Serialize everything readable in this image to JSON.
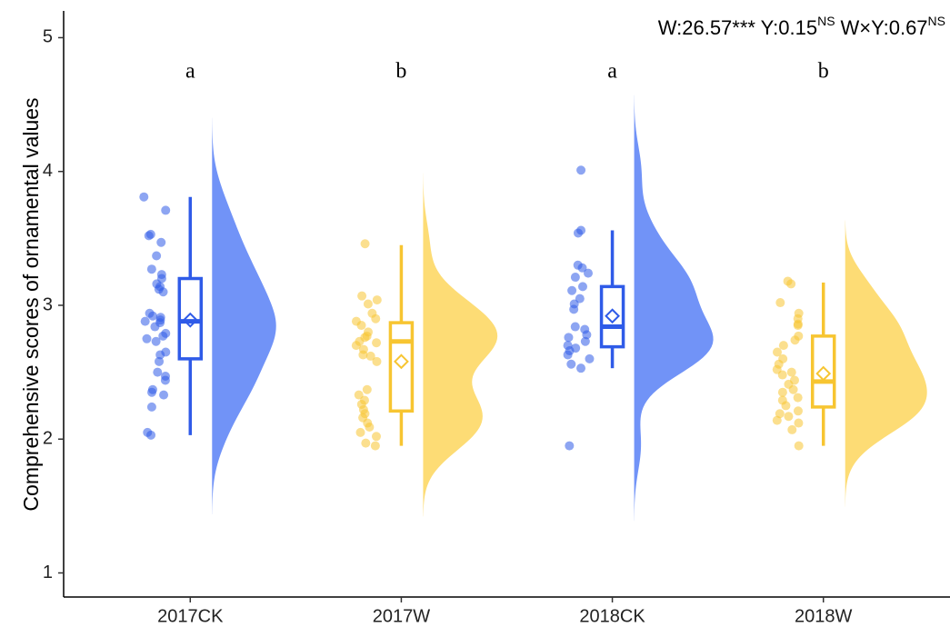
{
  "chart_data": {
    "type": "raincloud",
    "y_label": "Comprehensive scores of ornamental values",
    "annotation": [
      "W:26.57*** Y:0.15",
      "NS",
      "W×Y:0.67",
      "NS"
    ],
    "categories": [
      "2017CK",
      "2017W",
      "2018CK",
      "2018W"
    ],
    "letters": [
      "a",
      "b",
      "a",
      "b"
    ],
    "ylim": [
      0.82,
      5.2
    ],
    "yticks": [
      1,
      2,
      3,
      4,
      5
    ],
    "groups": [
      {
        "color": "#2f5be8",
        "fill": "#7193f7",
        "points": [
          3.81,
          3.71,
          3.53,
          3.52,
          3.47,
          3.37,
          3.27,
          3.23,
          3.2,
          3.16,
          3.14,
          3.12,
          3.1,
          2.94,
          2.92,
          2.91,
          2.89,
          2.88,
          2.87,
          2.84,
          2.79,
          2.77,
          2.75,
          2.73,
          2.65,
          2.63,
          2.58,
          2.5,
          2.47,
          2.44,
          2.37,
          2.35,
          2.33,
          2.24,
          2.05,
          2.03
        ],
        "box": {
          "min": 2.03,
          "q1": 2.6,
          "median": 2.88,
          "q3": 3.2,
          "max": 3.81
        },
        "mean": 2.89
      },
      {
        "color": "#f7c531",
        "fill": "#fddc75",
        "points": [
          3.46,
          3.07,
          3.04,
          3.01,
          2.94,
          2.9,
          2.88,
          2.85,
          2.8,
          2.77,
          2.76,
          2.73,
          2.72,
          2.7,
          2.67,
          2.63,
          2.62,
          2.58,
          2.37,
          2.33,
          2.29,
          2.26,
          2.22,
          2.19,
          2.16,
          2.12,
          2.09,
          2.05,
          2.02,
          1.97,
          1.95
        ],
        "box": {
          "min": 1.95,
          "q1": 2.21,
          "median": 2.73,
          "q3": 2.87,
          "max": 3.45
        },
        "mean": 2.58
      },
      {
        "color": "#2f5be8",
        "fill": "#7193f7",
        "points": [
          4.01,
          3.56,
          3.54,
          3.3,
          3.28,
          3.24,
          3.21,
          3.14,
          3.11,
          3.05,
          3.01,
          2.97,
          2.84,
          2.82,
          2.78,
          2.76,
          2.73,
          2.7,
          2.68,
          2.66,
          2.63,
          2.6,
          2.56,
          2.53,
          1.95
        ],
        "box": {
          "min": 2.53,
          "q1": 2.69,
          "median": 2.84,
          "q3": 3.14,
          "max": 3.56
        },
        "mean": 2.92
      },
      {
        "color": "#f7c531",
        "fill": "#fddc75",
        "points": [
          3.18,
          3.16,
          3.02,
          2.94,
          2.9,
          2.86,
          2.85,
          2.77,
          2.74,
          2.7,
          2.65,
          2.6,
          2.56,
          2.52,
          2.5,
          2.48,
          2.44,
          2.41,
          2.37,
          2.35,
          2.31,
          2.29,
          2.25,
          2.21,
          2.19,
          2.17,
          2.14,
          2.12,
          2.07,
          1.95
        ],
        "box": {
          "min": 1.95,
          "q1": 2.24,
          "median": 2.43,
          "q3": 2.77,
          "max": 3.17
        },
        "mean": 2.49
      }
    ]
  }
}
